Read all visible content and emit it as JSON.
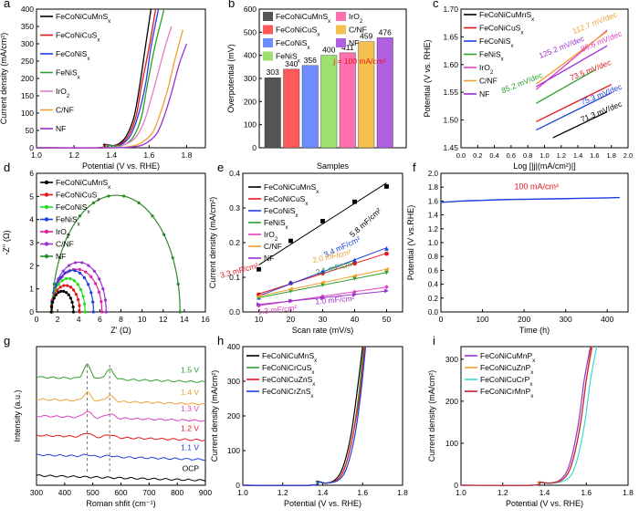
{
  "chart_data": [
    {
      "id": "a",
      "type": "line",
      "panel_label": "a",
      "xlabel": "Potential (V vs. RHE)",
      "ylabel": "Current density (mA/cm²)",
      "xlim": [
        1.0,
        1.9
      ],
      "ylim": [
        0,
        400
      ],
      "xticks": [
        "1.0",
        "1.2",
        "1.4",
        "1.6",
        "1.8"
      ],
      "yticks": [
        "0",
        "50",
        "100",
        "150",
        "200",
        "250",
        "300",
        "350",
        "400"
      ],
      "legend": [
        "FeCoNiCuMnSx",
        "FeCoNiCuSx",
        "FeCoNiSx",
        "FeNiSx",
        "IrO2",
        "C/NF",
        "NF"
      ],
      "series": [
        {
          "name": "FeCoNiCuMnSx",
          "color": "#000000",
          "x": [
            1.0,
            1.33,
            1.36,
            1.4,
            1.44,
            1.48,
            1.52,
            1.55,
            1.58,
            1.61
          ],
          "y": [
            0,
            0,
            10,
            6,
            12,
            35,
            90,
            180,
            290,
            400
          ]
        },
        {
          "name": "FeCoNiCuSx",
          "color": "#e8141c",
          "x": [
            1.0,
            1.33,
            1.37,
            1.41,
            1.45,
            1.49,
            1.53,
            1.56,
            1.6,
            1.635
          ],
          "y": [
            0,
            0,
            9,
            6,
            12,
            35,
            90,
            180,
            290,
            400
          ]
        },
        {
          "name": "FeCoNiSx",
          "color": "#1f3fe0",
          "x": [
            1.0,
            1.34,
            1.38,
            1.42,
            1.46,
            1.5,
            1.54,
            1.58,
            1.61,
            1.65
          ],
          "y": [
            0,
            0,
            8,
            5,
            12,
            35,
            90,
            180,
            290,
            400
          ]
        },
        {
          "name": "FeNiSx",
          "color": "#2ca02c",
          "x": [
            1.0,
            1.35,
            1.38,
            1.43,
            1.48,
            1.52,
            1.56,
            1.59,
            1.63,
            1.68
          ],
          "y": [
            0,
            0,
            6,
            5,
            12,
            35,
            90,
            180,
            290,
            400
          ]
        },
        {
          "name": "IrO2",
          "color": "#e87dc8",
          "x": [
            1.0,
            1.4,
            1.46,
            1.52,
            1.57,
            1.61,
            1.65,
            1.69,
            1.72
          ],
          "y": [
            0,
            0,
            8,
            25,
            70,
            140,
            220,
            300,
            350
          ]
        },
        {
          "name": "C/NF",
          "color": "#f0a030",
          "x": [
            1.0,
            1.4,
            1.5,
            1.56,
            1.62,
            1.66,
            1.7,
            1.74,
            1.78
          ],
          "y": [
            0,
            0,
            4,
            15,
            45,
            100,
            170,
            260,
            340
          ]
        },
        {
          "name": "NF",
          "color": "#9b30d0",
          "x": [
            1.0,
            1.4,
            1.52,
            1.58,
            1.64,
            1.68,
            1.72,
            1.76,
            1.8
          ],
          "y": [
            0,
            0,
            3,
            12,
            40,
            90,
            160,
            240,
            300
          ]
        }
      ]
    },
    {
      "id": "b",
      "type": "bar",
      "panel_label": "b",
      "xlabel": "Samples",
      "ylabel": "Overpotential (mV)",
      "ylim": [
        0,
        600
      ],
      "yticks": [
        "0",
        "100",
        "200",
        "300",
        "400",
        "500",
        "600"
      ],
      "annotation": "j = 100 mA/cm²",
      "legend": [
        "FeCoNiCuMnSx",
        "FeCoNiCuSx",
        "FeCoNiSx",
        "FeNiSx",
        "IrO2",
        "C/NF",
        "NF"
      ],
      "categories": [
        "FeCoNiCuMnSx",
        "FeCoNiCuSx",
        "FeCoNiSx",
        "FeNiSx",
        "IrO2",
        "C/NF",
        "NF"
      ],
      "values": [
        303,
        340,
        356,
        400,
        411,
        459,
        476
      ],
      "colors": [
        "#555555",
        "#ff5a5a",
        "#6d8cff",
        "#9ee070",
        "#ff70b0",
        "#f5c050",
        "#b060e0"
      ]
    },
    {
      "id": "c",
      "type": "line",
      "panel_label": "c",
      "xlabel": "Log [|j|(mA/cm²)|]",
      "ylabel": "Potential (V vs. RHE)",
      "xlim": [
        0.0,
        2.0
      ],
      "ylim": [
        1.45,
        1.7
      ],
      "xticks": [
        "0.0",
        "0.2",
        "0.4",
        "0.6",
        "0.8",
        "1.0",
        "1.2",
        "1.4",
        "1.6",
        "1.8",
        "2.0"
      ],
      "yticks": [
        "1.45",
        "1.50",
        "1.55",
        "1.60",
        "1.65",
        "1.70"
      ],
      "legend": [
        "FeCoNiCuMnSx",
        "FeCoNiCuSx",
        "FeCoNiSx",
        "FeNiSx",
        "IrO2",
        "C/NF",
        "NF"
      ],
      "series": [
        {
          "name": "FeCoNiCuMnSx",
          "color": "#000000",
          "x": [
            1.1,
            1.75
          ],
          "y": [
            1.468,
            1.515
          ]
        },
        {
          "name": "FeCoNiCuSx",
          "color": "#e8141c",
          "x": [
            0.9,
            1.8
          ],
          "y": [
            1.497,
            1.564
          ]
        },
        {
          "name": "FeCoNiSx",
          "color": "#1f3fe0",
          "x": [
            0.9,
            1.8
          ],
          "y": [
            1.482,
            1.549
          ]
        },
        {
          "name": "FeNiSx",
          "color": "#2ca02c",
          "x": [
            0.9,
            1.6
          ],
          "y": [
            1.53,
            1.59
          ]
        },
        {
          "name": "IrO2",
          "color": "#e040c0",
          "x": [
            0.9,
            1.75
          ],
          "y": [
            1.555,
            1.662
          ]
        },
        {
          "name": "C/NF",
          "color": "#f0a030",
          "x": [
            0.9,
            1.75
          ],
          "y": [
            1.565,
            1.66
          ]
        },
        {
          "name": "NF",
          "color": "#9b30d0",
          "x": [
            0.9,
            1.75
          ],
          "y": [
            1.56,
            1.634
          ]
        }
      ],
      "annotations": [
        {
          "text": "112.7 mV/dec",
          "color": "#f0a030",
          "x": 1.35,
          "y": 1.655
        },
        {
          "text": "125.2 mV/dec",
          "color": "#9b30d0",
          "x": 0.95,
          "y": 1.611
        },
        {
          "text": "86.6 mV/dec",
          "color": "#e040c0",
          "x": 1.45,
          "y": 1.623
        },
        {
          "text": "85.2 mV/dec",
          "color": "#2ca02c",
          "x": 0.5,
          "y": 1.548
        },
        {
          "text": "73.5 mV/dec",
          "color": "#e8141c",
          "x": 1.32,
          "y": 1.571
        },
        {
          "text": "75.3 mV/dec",
          "color": "#1f3fe0",
          "x": 1.45,
          "y": 1.527
        },
        {
          "text": "71.3 mV/dec",
          "color": "#000000",
          "x": 1.45,
          "y": 1.496
        }
      ]
    },
    {
      "id": "d",
      "type": "scatter",
      "panel_label": "d",
      "xlabel": "Z' (Ω)",
      "ylabel": "-Z'' (Ω)",
      "xlim": [
        0,
        16
      ],
      "ylim": [
        0,
        6
      ],
      "xticks": [
        "0",
        "2",
        "4",
        "6",
        "8",
        "10",
        "12",
        "14",
        "16"
      ],
      "yticks": [
        "0",
        "1",
        "2",
        "3",
        "4",
        "5",
        "6"
      ],
      "legend": [
        "FeCoNiCuMnSx",
        "FeCoNiCuSx",
        "FeCoNiSx",
        "FeNiSx",
        "IrO2",
        "C/NF",
        "NF"
      ],
      "series": [
        {
          "name": "FeCoNiCuMnSx",
          "color": "#000000",
          "center": 2.45,
          "radius": 1.05,
          "peak": 0.9
        },
        {
          "name": "FeCoNiCuSx",
          "color": "#e8141c",
          "center": 2.75,
          "radius": 1.35,
          "peak": 1.15
        },
        {
          "name": "FeCoNiSx",
          "color": "#22dd22",
          "center": 3.0,
          "radius": 1.6,
          "peak": 1.45
        },
        {
          "name": "FeNiSx",
          "color": "#1f3fe0",
          "center": 3.4,
          "radius": 2.0,
          "peak": 1.8
        },
        {
          "name": "IrO2",
          "color": "#e0209a",
          "center": 3.8,
          "radius": 2.4,
          "peak": 1.85
        },
        {
          "name": "C/NF",
          "color": "#9b30d0",
          "center": 4.0,
          "radius": 2.6,
          "peak": 2.15
        },
        {
          "name": "NF",
          "color": "#2c8a2c",
          "center": 7.55,
          "radius": 6.05,
          "peak": 5.05
        }
      ]
    },
    {
      "id": "e",
      "type": "scatter",
      "panel_label": "e",
      "xlabel": "Scan rate (mV/s)",
      "ylabel": "Current density (mA/cm²)",
      "xlim": [
        5,
        55
      ],
      "ylim": [
        0.0,
        0.4
      ],
      "xticks": [
        "10",
        "20",
        "30",
        "40",
        "50"
      ],
      "yticks": [
        "0.0",
        "0.1",
        "0.2",
        "0.3",
        "0.4"
      ],
      "legend": [
        "FeCoNiCuMnSx",
        "FeCoNiCuSx",
        "FeCoNiSx",
        "FeNiSx",
        "IrO2",
        "C/NF",
        "NF"
      ],
      "x": [
        10,
        20,
        30,
        40,
        50
      ],
      "series": [
        {
          "name": "FeCoNiCuMnSx",
          "color": "#000000",
          "marker": "square",
          "y": [
            0.123,
            0.205,
            0.262,
            0.318,
            0.362
          ],
          "slope_label": "5.8 mF/cm²"
        },
        {
          "name": "FeCoNiCuSx",
          "color": "#e8141c",
          "marker": "circle",
          "y": [
            0.05,
            0.083,
            0.112,
            0.14,
            0.168
          ],
          "slope_label": "3.3 mF/cm²"
        },
        {
          "name": "FeCoNiSx",
          "color": "#1f3fe0",
          "marker": "triangle",
          "y": [
            0.042,
            0.085,
            0.118,
            0.15,
            0.183
          ],
          "slope_label": "3.4 mF/cm²"
        },
        {
          "name": "FeNiSx",
          "color": "#2ca02c",
          "marker": "triangle-down",
          "y": [
            0.04,
            0.06,
            0.078,
            0.096,
            0.113
          ],
          "slope_label": "2.1 mF/cm²"
        },
        {
          "name": "IrO2",
          "color": "#e040c0",
          "marker": "diamond",
          "y": [
            0.018,
            0.032,
            0.045,
            0.058,
            0.072
          ],
          "slope_label": "1.3 mF/cm²"
        },
        {
          "name": "C/NF",
          "color": "#f0a030",
          "marker": "triangle-left",
          "y": [
            0.045,
            0.066,
            0.085,
            0.104,
            0.123
          ],
          "slope_label": "2.0 mF/cm²"
        },
        {
          "name": "NF",
          "color": "#9b30d0",
          "marker": "triangle-right",
          "y": [
            0.022,
            0.032,
            0.04,
            0.05,
            0.061
          ],
          "slope_label": "1.0 mF/cm²"
        }
      ]
    },
    {
      "id": "f",
      "type": "line",
      "panel_label": "f",
      "xlabel": "Time (h)",
      "ylabel": "Potential (V vs.RHE)",
      "xlim": [
        0,
        450
      ],
      "ylim": [
        0.0,
        2.0
      ],
      "xticks": [
        "0",
        "100",
        "200",
        "300",
        "400"
      ],
      "yticks": [
        "0.0",
        "0.2",
        "0.4",
        "0.6",
        "0.8",
        "1.0",
        "1.2",
        "1.4",
        "1.6",
        "1.8",
        "2.0"
      ],
      "annotation": "100 mA/cm²",
      "series": [
        {
          "name": "stability",
          "color": "#1f3fe0",
          "x": [
            0,
            50,
            100,
            150,
            200,
            250,
            300,
            350,
            400,
            430
          ],
          "y": [
            1.58,
            1.6,
            1.61,
            1.62,
            1.625,
            1.63,
            1.635,
            1.64,
            1.645,
            1.65
          ]
        }
      ]
    },
    {
      "id": "g",
      "type": "line",
      "panel_label": "g",
      "xlabel": "Roman shfit (cm⁻¹)",
      "ylabel": "Intensity (a.u.)",
      "xlim": [
        300,
        900
      ],
      "xticks": [
        "300",
        "400",
        "500",
        "600",
        "700",
        "800",
        "900"
      ],
      "series": [
        {
          "name": "1.5 V",
          "color": "#2ca02c"
        },
        {
          "name": "1.4 V",
          "color": "#f0a030"
        },
        {
          "name": "1.3 V",
          "color": "#e040c0"
        },
        {
          "name": "1.2 V",
          "color": "#e8141c"
        },
        {
          "name": "1.1 V",
          "color": "#1f3fe0"
        },
        {
          "name": "OCP",
          "color": "#000000"
        }
      ]
    },
    {
      "id": "h",
      "type": "line",
      "panel_label": "h",
      "xlabel": "Potential (V vs. RHE)",
      "ylabel": "Current density (mA/cm²)",
      "xlim": [
        1.0,
        1.8
      ],
      "ylim": [
        0,
        400
      ],
      "xticks": [
        "1.0",
        "1.2",
        "1.4",
        "1.6",
        "1.8"
      ],
      "yticks": [
        "0",
        "100",
        "200",
        "300",
        "400"
      ],
      "legend": [
        "FeCoNiCuMnSx",
        "FeCoNiCrCuSx",
        "FeCoNiCuZnSx",
        "FeCoNiCrZnSx"
      ],
      "series": [
        {
          "name": "FeCoNiCuMnSx",
          "color": "#000000",
          "x": [
            1.0,
            1.34,
            1.37,
            1.41,
            1.46,
            1.5,
            1.54,
            1.57,
            1.6
          ],
          "y": [
            0,
            0,
            12,
            6,
            15,
            50,
            140,
            260,
            400
          ]
        },
        {
          "name": "FeCoNiCrCuSx",
          "color": "#2ca02c",
          "x": [
            1.0,
            1.34,
            1.37,
            1.41,
            1.47,
            1.51,
            1.55,
            1.58,
            1.605
          ],
          "y": [
            0,
            0,
            11,
            6,
            15,
            50,
            140,
            260,
            400
          ]
        },
        {
          "name": "FeCoNiCuZnSx",
          "color": "#e8141c",
          "x": [
            1.0,
            1.34,
            1.38,
            1.42,
            1.47,
            1.51,
            1.55,
            1.585,
            1.61
          ],
          "y": [
            0,
            0,
            10,
            6,
            15,
            50,
            140,
            260,
            400
          ]
        },
        {
          "name": "FeCoNiCrZnSx",
          "color": "#1f3fe0",
          "x": [
            1.0,
            1.34,
            1.38,
            1.42,
            1.48,
            1.52,
            1.56,
            1.59,
            1.615
          ],
          "y": [
            0,
            0,
            10,
            6,
            15,
            50,
            140,
            260,
            400
          ]
        }
      ]
    },
    {
      "id": "i",
      "type": "line",
      "panel_label": "i",
      "xlabel": "Potential (V vs. RHE)",
      "ylabel": "Current density (mA/cm²)",
      "xlim": [
        1.0,
        1.8
      ],
      "ylim": [
        0,
        330
      ],
      "xticks": [
        "1.0",
        "1.2",
        "1.4",
        "1.6",
        "1.8"
      ],
      "yticks": [
        "0",
        "100",
        "200",
        "300"
      ],
      "legend": [
        "FeCoNiCuMnPx",
        "FeCoNiCuZnPx",
        "FeCoNiCuCrPx",
        "FeCoNiCrMnPx"
      ],
      "series": [
        {
          "name": "FeCoNiCuMnPx",
          "color": "#9b30d0",
          "x": [
            1.0,
            1.34,
            1.37,
            1.42,
            1.48,
            1.52,
            1.56,
            1.59,
            1.62
          ],
          "y": [
            0,
            0,
            8,
            5,
            15,
            50,
            140,
            250,
            330
          ]
        },
        {
          "name": "FeCoNiCuZnPx",
          "color": "#f0a030",
          "x": [
            1.0,
            1.34,
            1.37,
            1.42,
            1.49,
            1.53,
            1.57,
            1.6,
            1.63
          ],
          "y": [
            0,
            0,
            7,
            5,
            15,
            50,
            140,
            250,
            330
          ]
        },
        {
          "name": "FeCoNiCuCrPx",
          "color": "#40d8d8",
          "x": [
            1.0,
            1.34,
            1.38,
            1.44,
            1.51,
            1.55,
            1.59,
            1.62,
            1.65
          ],
          "y": [
            0,
            0,
            6,
            5,
            15,
            50,
            140,
            250,
            330
          ]
        },
        {
          "name": "FeCoNiCrMnPx",
          "color": "#c02030",
          "x": [
            1.0,
            1.34,
            1.38,
            1.43,
            1.49,
            1.53,
            1.57,
            1.6,
            1.625
          ],
          "y": [
            0,
            0,
            7,
            5,
            15,
            50,
            140,
            250,
            330
          ]
        }
      ]
    }
  ]
}
